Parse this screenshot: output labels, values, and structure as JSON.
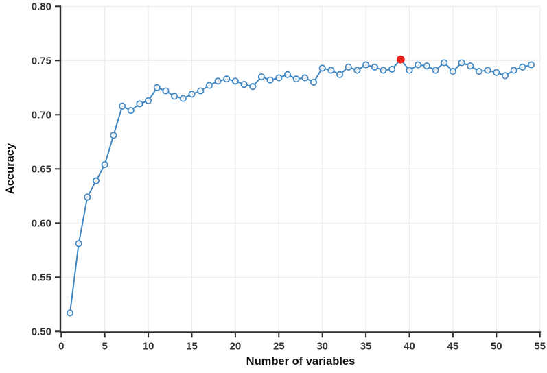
{
  "figure": {
    "type": "line-chart-figure"
  },
  "chart_data": {
    "type": "line",
    "title": "",
    "xlabel": "Number of variables",
    "ylabel": "Accuracy",
    "x": [
      1,
      2,
      3,
      4,
      5,
      6,
      7,
      8,
      9,
      10,
      11,
      12,
      13,
      14,
      15,
      16,
      17,
      18,
      19,
      20,
      21,
      22,
      23,
      24,
      25,
      26,
      27,
      28,
      29,
      30,
      31,
      32,
      33,
      34,
      35,
      36,
      37,
      38,
      39,
      40,
      41,
      42,
      43,
      44,
      45,
      46,
      47,
      48,
      49,
      50,
      51,
      52,
      53,
      54
    ],
    "y": [
      0.517,
      0.581,
      0.624,
      0.639,
      0.654,
      0.681,
      0.708,
      0.704,
      0.71,
      0.713,
      0.725,
      0.722,
      0.717,
      0.715,
      0.719,
      0.722,
      0.727,
      0.731,
      0.733,
      0.731,
      0.728,
      0.726,
      0.735,
      0.732,
      0.734,
      0.737,
      0.733,
      0.734,
      0.73,
      0.743,
      0.741,
      0.737,
      0.744,
      0.741,
      0.746,
      0.744,
      0.741,
      0.742,
      0.751,
      0.741,
      0.746,
      0.745,
      0.741,
      0.748,
      0.74,
      0.748,
      0.745,
      0.74,
      0.741,
      0.739,
      0.736,
      0.741,
      0.744,
      0.746
    ],
    "highlight_point": {
      "x": 39,
      "y": 0.751
    },
    "x_tick_labels": [
      "0",
      "5",
      "10",
      "15",
      "20",
      "25",
      "30",
      "35",
      "40",
      "45",
      "50",
      "55"
    ],
    "y_tick_labels": [
      "0.50",
      "0.55",
      "0.60",
      "0.65",
      "0.70",
      "0.75",
      "0.80"
    ],
    "xlim": [
      0,
      55
    ],
    "ylim": [
      0.5,
      0.8
    ],
    "grid": true,
    "legend": false,
    "colors": {
      "line": "#3f86c2",
      "marker_stroke": "#3f86c2",
      "marker_fill": "#ffffff",
      "highlight": "#e8211d",
      "axis": "#2e2e2e",
      "grid": "#ececec",
      "tick_text": "#333333",
      "title_text": "#111111"
    }
  }
}
